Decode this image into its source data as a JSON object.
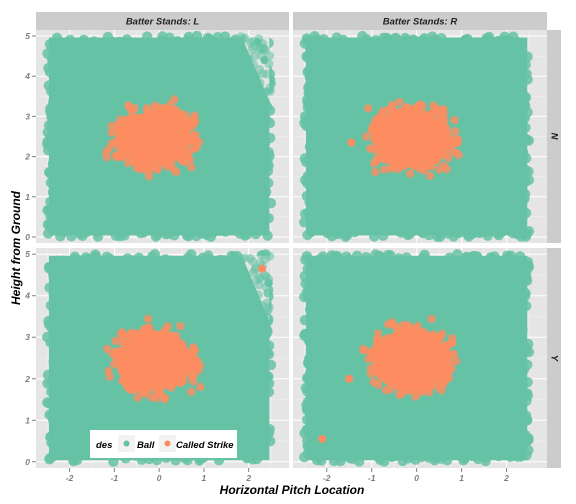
{
  "chart_data": {
    "type": "scatter",
    "facet_columns": [
      "Batter Stands: L",
      "Batter Stands: R"
    ],
    "facet_rows": [
      "N",
      "Y"
    ],
    "xlabel": "Horizontal Pitch Location",
    "ylabel": "Height from Ground",
    "xlim": [
      -2.75,
      2.9
    ],
    "ylim": [
      -0.15,
      5.15
    ],
    "x_ticks": [
      -2,
      -1,
      0,
      1,
      2
    ],
    "y_ticks": [
      0,
      1,
      2,
      3,
      4,
      5
    ],
    "grid": true,
    "legend": {
      "title": "des",
      "placement": "inside-bottom-left",
      "entries": [
        {
          "label": "Ball",
          "color": "#66c2a5"
        },
        {
          "label": "Called Strike",
          "color": "#fc8d62"
        }
      ]
    },
    "series": [
      {
        "name": "Ball",
        "color": "#66c2a5",
        "distribution": "uniform-fill",
        "x_range": [
          -2.5,
          2.5
        ],
        "y_range": [
          0,
          5
        ],
        "notes_visible": "covers the whole plotting region, thinning toward the top-right corner in the L panels"
      },
      {
        "name": "Called Strike",
        "color": "#fc8d62",
        "distribution": "dense-cluster",
        "center": [
          -0.1,
          2.45
        ],
        "x_range": [
          -1.25,
          1.0
        ],
        "y_range": [
          1.5,
          3.45
        ]
      }
    ],
    "outliers": [
      {
        "facet": "L-N",
        "x": 2.2,
        "y": 4.85,
        "series": "Ball"
      },
      {
        "facet": "L-N",
        "x": 2.35,
        "y": 4.4,
        "series": "Ball"
      },
      {
        "facet": "L-Y",
        "x": 2.3,
        "y": 4.65,
        "series": "Called Strike"
      },
      {
        "facet": "L-Y",
        "x": 2.45,
        "y": 4.3,
        "series": "Ball"
      },
      {
        "facet": "R-Y",
        "x": -2.1,
        "y": 0.55,
        "series": "Called Strike"
      },
      {
        "facet": "R-Y",
        "x": -1.5,
        "y": 2.0,
        "series": "Called Strike"
      },
      {
        "facet": "R-N",
        "x": -1.45,
        "y": 2.35,
        "series": "Called Strike"
      }
    ]
  }
}
